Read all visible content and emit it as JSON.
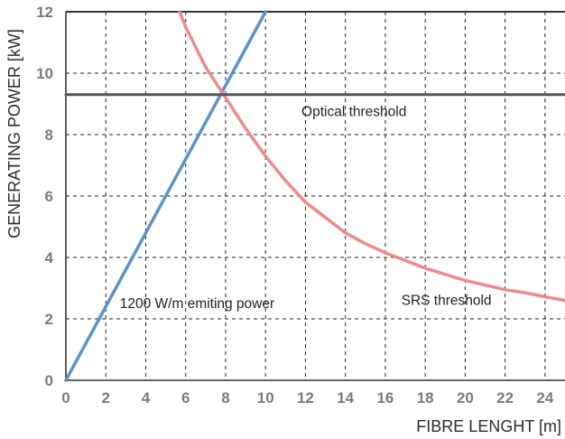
{
  "chart_data": {
    "type": "line",
    "title": "",
    "xlabel": "FIBRE  LENGHT  [m]",
    "ylabel": "GENERATING POWER  [kW]",
    "xlim": [
      0,
      25
    ],
    "ylim": [
      0,
      12
    ],
    "x_ticks": [
      "0",
      "2",
      "4",
      "6",
      "8",
      "10",
      "12",
      "14",
      "16",
      "18",
      "20",
      "22",
      "24"
    ],
    "y_ticks": [
      "0",
      "2",
      "4",
      "6",
      "8",
      "10",
      "12"
    ],
    "grid": true,
    "series": [
      {
        "name": "1200 W/m  emiting power",
        "color": "#5b93c7",
        "x": [
          0,
          10
        ],
        "y": [
          0,
          12
        ]
      },
      {
        "name": "SRS threshold",
        "color": "#f08a8a",
        "x": [
          5.7,
          6,
          7,
          8,
          9,
          10,
          11,
          12,
          13,
          14,
          15,
          16,
          17,
          18,
          19,
          20,
          21,
          22,
          23,
          24,
          25
        ],
        "y": [
          12,
          11.5,
          10.2,
          9.2,
          8.2,
          7.3,
          6.5,
          5.8,
          5.3,
          4.8,
          4.45,
          4.15,
          3.9,
          3.65,
          3.45,
          3.25,
          3.1,
          2.95,
          2.85,
          2.72,
          2.6
        ]
      },
      {
        "name": "Optical threshold",
        "color": "#555555",
        "x": [
          0,
          25
        ],
        "y": [
          9.3,
          9.3
        ]
      }
    ],
    "annotations": [
      {
        "text": "Optical threshold",
        "x": 11.8,
        "y": 8.6
      },
      {
        "text": "1200 W/m  emiting power",
        "x": 2.7,
        "y": 2.35
      },
      {
        "text": "SRS threshold",
        "x": 16.8,
        "y": 2.45
      }
    ]
  }
}
